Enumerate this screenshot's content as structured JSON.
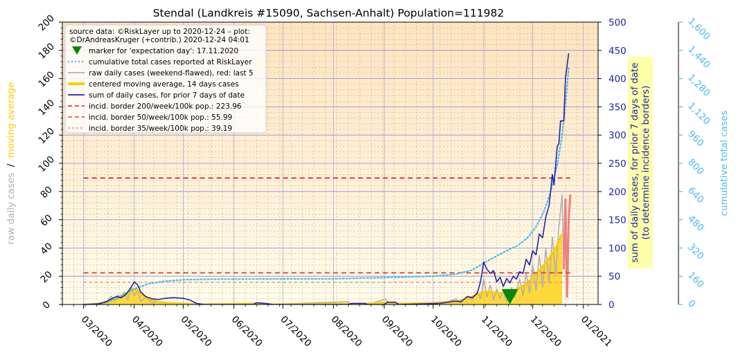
{
  "colors": {
    "bg_top": "#ffe3bf",
    "bg_bottom": "#fffbea",
    "grid_major": "#8b8bd8",
    "grid_minor": "#b9b39e",
    "moving_avg": "#ffcc00",
    "moving_avg_fill": "#ffd21a",
    "raw": "#b0b0b0",
    "raw_recent": "#f08080",
    "sum7": "#2222aa",
    "cumulative": "#4dbbf0",
    "border200": "#dd2222",
    "border50": "#dd4433",
    "border35": "#ee8877",
    "marker": "#008800",
    "left_axis_ma": "#ffcc00",
    "left_axis_raw": "#b0b0b0",
    "right_axis": "#2222aa",
    "far_axis": "#4dbbf0",
    "right_label_box": "#ffffaa"
  },
  "chart_data": {
    "type": "line",
    "title": "Stendal (Landkreis #15090, Sachsen-Anhalt) Population=111982",
    "left_axis": {
      "label_raw": "raw daily cases",
      "label_sep": "/",
      "label_ma": "moving average",
      "ylim": [
        0,
        200
      ],
      "ticks": [
        "0",
        "20",
        "40",
        "60",
        "80",
        "100",
        "120",
        "140",
        "160",
        "180",
        "200"
      ]
    },
    "right_axis": {
      "label_line1": "sum of daily cases, for prior 7 days of date",
      "label_line2": "(to determine incidence borders)",
      "ylim": [
        0,
        500
      ],
      "ticks": [
        "0",
        "50",
        "100",
        "150",
        "200",
        "250",
        "300",
        "350",
        "400",
        "450",
        "500"
      ]
    },
    "far_right_axis": {
      "label": "cumulative total cases",
      "ylim": [
        0,
        1600
      ],
      "ticks": [
        "0",
        "160",
        "320",
        "480",
        "640",
        "800",
        "960",
        "1,120",
        "1,280",
        "1,440",
        "1,600"
      ]
    },
    "x_axis": {
      "xlim": [
        "2020-02-17",
        "2021-01-10"
      ],
      "ticks": [
        {
          "date": "2020-03-01",
          "label": "03/2020"
        },
        {
          "date": "2020-04-01",
          "label": "04/2020"
        },
        {
          "date": "2020-05-01",
          "label": "05/2020"
        },
        {
          "date": "2020-06-01",
          "label": "06/2020"
        },
        {
          "date": "2020-07-01",
          "label": "07/2020"
        },
        {
          "date": "2020-08-01",
          "label": "08/2020"
        },
        {
          "date": "2020-09-01",
          "label": "09/2020"
        },
        {
          "date": "2020-10-01",
          "label": "10/2020"
        },
        {
          "date": "2020-11-01",
          "label": "11/2020"
        },
        {
          "date": "2020-12-01",
          "label": "12/2020"
        },
        {
          "date": "2021-01-01",
          "label": "01/2021"
        }
      ]
    },
    "legend": {
      "position": "top-left",
      "source_line1": "source data: ©RiskLayer up to 2020-12-24 – plot:",
      "source_line2": "©DrAndreasKruger (+contrib.) 2020-12-24 04:01",
      "entries": [
        {
          "key": "marker",
          "label": "marker for 'expectation day': 17.11.2020"
        },
        {
          "key": "cumulative",
          "label": "cumulative total cases reported at RiskLayer"
        },
        {
          "key": "raw",
          "label": "raw daily cases (weekend-flawed), red: last 5"
        },
        {
          "key": "moving_avg",
          "label": "centered moving average, 14 days cases"
        },
        {
          "key": "sum7",
          "label": "sum of daily cases, for prior 7 days of date"
        },
        {
          "key": "border200",
          "label": "incid. border 200/week/100k pop.: 223.96"
        },
        {
          "key": "border50",
          "label": "incid. border 50/week/100k pop.: 55.99"
        },
        {
          "key": "border35",
          "label": "incid. border 35/week/100k pop.: 39.19"
        }
      ]
    },
    "incidence_borders": [
      {
        "key": "border200",
        "value": 223.96,
        "from": "2020-03-01",
        "to": "2020-12-24"
      },
      {
        "key": "border50",
        "value": 55.99,
        "from": "2020-03-01",
        "to": "2020-12-24"
      },
      {
        "key": "border35",
        "value": 39.19,
        "from": "2020-03-01",
        "to": "2020-12-24"
      }
    ],
    "expectation_marker": {
      "date": "2020-11-17",
      "value": 5
    },
    "series": [
      {
        "key": "cumulative",
        "axis": "far_right",
        "points": [
          [
            "2020-03-01",
            0
          ],
          [
            "2020-03-10",
            3
          ],
          [
            "2020-03-15",
            15
          ],
          [
            "2020-03-20",
            30
          ],
          [
            "2020-03-25",
            55
          ],
          [
            "2020-04-01",
            88
          ],
          [
            "2020-04-10",
            118
          ],
          [
            "2020-04-20",
            132
          ],
          [
            "2020-05-01",
            140
          ],
          [
            "2020-05-15",
            143
          ],
          [
            "2020-06-01",
            144
          ],
          [
            "2020-07-01",
            145
          ],
          [
            "2020-08-01",
            145
          ],
          [
            "2020-08-20",
            150
          ],
          [
            "2020-09-01",
            152
          ],
          [
            "2020-09-20",
            157
          ],
          [
            "2020-10-01",
            160
          ],
          [
            "2020-10-15",
            172
          ],
          [
            "2020-10-25",
            195
          ],
          [
            "2020-11-01",
            235
          ],
          [
            "2020-11-08",
            270
          ],
          [
            "2020-11-15",
            305
          ],
          [
            "2020-11-22",
            335
          ],
          [
            "2020-11-28",
            380
          ],
          [
            "2020-12-03",
            440
          ],
          [
            "2020-12-08",
            530
          ],
          [
            "2020-12-12",
            640
          ],
          [
            "2020-12-16",
            790
          ],
          [
            "2020-12-19",
            960
          ],
          [
            "2020-12-21",
            1130
          ],
          [
            "2020-12-23",
            1340
          ]
        ]
      },
      {
        "key": "raw",
        "axis": "left",
        "points": [
          [
            "2020-03-08",
            0
          ],
          [
            "2020-03-12",
            1
          ],
          [
            "2020-03-16",
            3
          ],
          [
            "2020-03-18",
            6
          ],
          [
            "2020-03-20",
            2
          ],
          [
            "2020-03-22",
            7
          ],
          [
            "2020-03-24",
            4
          ],
          [
            "2020-03-26",
            9
          ],
          [
            "2020-03-28",
            3
          ],
          [
            "2020-03-30",
            12
          ],
          [
            "2020-04-01",
            6
          ],
          [
            "2020-04-03",
            10
          ],
          [
            "2020-04-05",
            2
          ],
          [
            "2020-04-08",
            5
          ],
          [
            "2020-04-12",
            1
          ],
          [
            "2020-04-16",
            2
          ],
          [
            "2020-04-20",
            1
          ],
          [
            "2020-04-25",
            0
          ],
          [
            "2020-05-01",
            1
          ],
          [
            "2020-05-10",
            0
          ],
          [
            "2020-06-15",
            1
          ],
          [
            "2020-06-20",
            0
          ],
          [
            "2020-08-10",
            2
          ],
          [
            "2020-08-12",
            0
          ],
          [
            "2020-08-25",
            1
          ],
          [
            "2020-09-02",
            4
          ],
          [
            "2020-09-04",
            0
          ],
          [
            "2020-10-10",
            2
          ],
          [
            "2020-10-15",
            4
          ],
          [
            "2020-10-18",
            1
          ],
          [
            "2020-10-22",
            6
          ],
          [
            "2020-10-25",
            3
          ],
          [
            "2020-10-28",
            9
          ],
          [
            "2020-10-30",
            4
          ],
          [
            "2020-11-01",
            18
          ],
          [
            "2020-11-03",
            5
          ],
          [
            "2020-11-05",
            14
          ],
          [
            "2020-11-07",
            3
          ],
          [
            "2020-11-09",
            11
          ],
          [
            "2020-11-11",
            4
          ],
          [
            "2020-11-13",
            9
          ],
          [
            "2020-11-15",
            2
          ],
          [
            "2020-11-18",
            12
          ],
          [
            "2020-11-20",
            5
          ],
          [
            "2020-11-23",
            18
          ],
          [
            "2020-11-25",
            6
          ],
          [
            "2020-11-27",
            22
          ],
          [
            "2020-11-29",
            8
          ],
          [
            "2020-12-01",
            28
          ],
          [
            "2020-12-03",
            10
          ],
          [
            "2020-12-05",
            35
          ],
          [
            "2020-12-07",
            12
          ],
          [
            "2020-12-09",
            40
          ],
          [
            "2020-12-11",
            15
          ],
          [
            "2020-12-13",
            48
          ],
          [
            "2020-12-15",
            20
          ],
          [
            "2020-12-17",
            55
          ],
          [
            "2020-12-19",
            78
          ],
          [
            "2020-12-20",
            25
          ]
        ]
      },
      {
        "key": "raw_recent",
        "axis": "left",
        "points": [
          [
            "2020-12-20",
            25
          ],
          [
            "2020-12-21",
            75
          ],
          [
            "2020-12-22",
            5
          ],
          [
            "2020-12-23",
            60
          ],
          [
            "2020-12-24",
            78
          ]
        ]
      },
      {
        "key": "moving_avg",
        "axis": "left",
        "points": [
          [
            "2020-03-05",
            0
          ],
          [
            "2020-03-12",
            1
          ],
          [
            "2020-03-18",
            2
          ],
          [
            "2020-03-22",
            4
          ],
          [
            "2020-03-26",
            6
          ],
          [
            "2020-03-29",
            9
          ],
          [
            "2020-04-01",
            11
          ],
          [
            "2020-04-03",
            10
          ],
          [
            "2020-04-06",
            7
          ],
          [
            "2020-04-10",
            4
          ],
          [
            "2020-04-15",
            2
          ],
          [
            "2020-04-22",
            1
          ],
          [
            "2020-05-01",
            0.5
          ],
          [
            "2020-05-10",
            0
          ],
          [
            "2020-06-15",
            0.5
          ],
          [
            "2020-06-25",
            0
          ],
          [
            "2020-08-08",
            0.5
          ],
          [
            "2020-08-18",
            0
          ],
          [
            "2020-09-01",
            1.5
          ],
          [
            "2020-09-08",
            0.5
          ],
          [
            "2020-10-05",
            1
          ],
          [
            "2020-10-15",
            2
          ],
          [
            "2020-10-22",
            4
          ],
          [
            "2020-10-28",
            7
          ],
          [
            "2020-11-01",
            9
          ],
          [
            "2020-11-05",
            9
          ],
          [
            "2020-11-10",
            8
          ],
          [
            "2020-11-15",
            8
          ],
          [
            "2020-11-20",
            10
          ],
          [
            "2020-11-25",
            13
          ],
          [
            "2020-11-30",
            18
          ],
          [
            "2020-12-05",
            24
          ],
          [
            "2020-12-10",
            31
          ],
          [
            "2020-12-15",
            40
          ],
          [
            "2020-12-19",
            50
          ]
        ]
      },
      {
        "key": "sum7",
        "axis": "right",
        "points": [
          [
            "2020-03-01",
            0
          ],
          [
            "2020-03-10",
            1
          ],
          [
            "2020-03-15",
            5
          ],
          [
            "2020-03-18",
            10
          ],
          [
            "2020-03-21",
            14
          ],
          [
            "2020-03-24",
            12
          ],
          [
            "2020-03-27",
            18
          ],
          [
            "2020-03-30",
            30
          ],
          [
            "2020-04-01",
            40
          ],
          [
            "2020-04-03",
            35
          ],
          [
            "2020-04-05",
            22
          ],
          [
            "2020-04-08",
            14
          ],
          [
            "2020-04-12",
            10
          ],
          [
            "2020-04-16",
            9
          ],
          [
            "2020-04-20",
            11
          ],
          [
            "2020-04-25",
            12
          ],
          [
            "2020-05-01",
            11
          ],
          [
            "2020-05-05",
            8
          ],
          [
            "2020-05-09",
            2
          ],
          [
            "2020-05-14",
            0
          ],
          [
            "2020-06-13",
            0
          ],
          [
            "2020-06-15",
            3
          ],
          [
            "2020-06-20",
            2
          ],
          [
            "2020-06-25",
            0
          ],
          [
            "2020-08-10",
            0
          ],
          [
            "2020-08-12",
            2
          ],
          [
            "2020-08-20",
            2
          ],
          [
            "2020-08-22",
            0
          ],
          [
            "2020-09-01",
            0
          ],
          [
            "2020-09-03",
            4
          ],
          [
            "2020-09-08",
            4
          ],
          [
            "2020-09-10",
            0
          ],
          [
            "2020-10-05",
            2
          ],
          [
            "2020-10-10",
            4
          ],
          [
            "2020-10-14",
            6
          ],
          [
            "2020-10-18",
            5
          ],
          [
            "2020-10-22",
            14
          ],
          [
            "2020-10-25",
            12
          ],
          [
            "2020-10-28",
            20
          ],
          [
            "2020-10-30",
            40
          ],
          [
            "2020-11-01",
            75
          ],
          [
            "2020-11-03",
            62
          ],
          [
            "2020-11-05",
            55
          ],
          [
            "2020-11-07",
            60
          ],
          [
            "2020-11-09",
            40
          ],
          [
            "2020-11-11",
            48
          ],
          [
            "2020-11-13",
            32
          ],
          [
            "2020-11-15",
            46
          ],
          [
            "2020-11-17",
            38
          ],
          [
            "2020-11-19",
            50
          ],
          [
            "2020-11-21",
            45
          ],
          [
            "2020-11-23",
            58
          ],
          [
            "2020-11-25",
            55
          ],
          [
            "2020-11-27",
            80
          ],
          [
            "2020-11-29",
            70
          ],
          [
            "2020-12-01",
            95
          ],
          [
            "2020-12-03",
            88
          ],
          [
            "2020-12-05",
            125
          ],
          [
            "2020-12-07",
            118
          ],
          [
            "2020-12-09",
            155
          ],
          [
            "2020-12-11",
            175
          ],
          [
            "2020-12-13",
            230
          ],
          [
            "2020-12-14",
            212
          ],
          [
            "2020-12-16",
            280
          ],
          [
            "2020-12-17",
            285
          ],
          [
            "2020-12-18",
            325
          ],
          [
            "2020-12-20",
            325
          ],
          [
            "2020-12-21",
            400
          ],
          [
            "2020-12-23",
            445
          ]
        ]
      }
    ]
  }
}
